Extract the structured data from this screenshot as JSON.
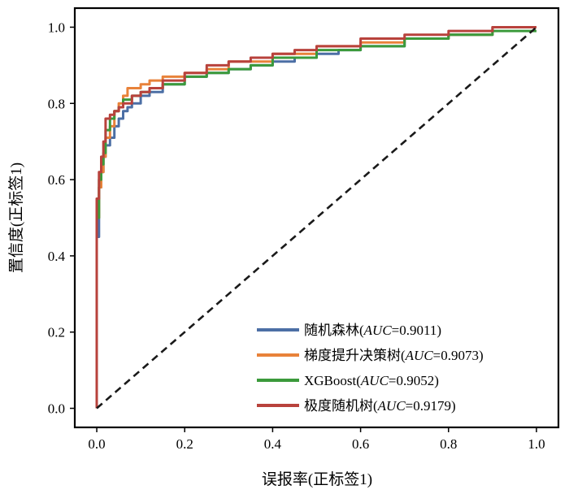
{
  "chart_data": {
    "type": "line",
    "title": "",
    "xlabel": "误报率(正标签1)",
    "ylabel": "置信度(正标签1)",
    "xlim": [
      -0.05,
      1.05
    ],
    "ylim": [
      -0.05,
      1.05
    ],
    "xticks": [
      "0.0",
      "0.2",
      "0.4",
      "0.6",
      "0.8",
      "1.0"
    ],
    "yticks": [
      "0.0",
      "0.2",
      "0.4",
      "0.6",
      "0.8",
      "1.0"
    ],
    "grid": false,
    "legend_position": "lower-right",
    "series": [
      {
        "name": "随机森林",
        "auc_label": "AUC",
        "auc_value": "=0.9011)",
        "color": "#4c6fa5",
        "x": [
          0,
          0.005,
          0.01,
          0.015,
          0.02,
          0.03,
          0.04,
          0.05,
          0.06,
          0.07,
          0.08,
          0.1,
          0.12,
          0.15,
          0.2,
          0.25,
          0.3,
          0.35,
          0.4,
          0.45,
          0.5,
          0.55,
          0.6,
          0.7,
          0.8,
          0.9,
          1.0
        ],
        "y": [
          0,
          0.45,
          0.58,
          0.62,
          0.66,
          0.69,
          0.71,
          0.74,
          0.76,
          0.78,
          0.79,
          0.8,
          0.82,
          0.83,
          0.85,
          0.87,
          0.88,
          0.89,
          0.9,
          0.91,
          0.92,
          0.93,
          0.94,
          0.95,
          0.97,
          0.98,
          1.0
        ]
      },
      {
        "name": "梯度提升决策树",
        "auc_label": "AUC",
        "auc_value": "=0.9073)",
        "color": "#e8823a",
        "x": [
          0,
          0.005,
          0.01,
          0.015,
          0.02,
          0.03,
          0.04,
          0.05,
          0.06,
          0.07,
          0.08,
          0.1,
          0.12,
          0.15,
          0.2,
          0.25,
          0.3,
          0.4,
          0.5,
          0.6,
          0.7,
          0.8,
          0.9,
          1.0
        ],
        "y": [
          0,
          0.5,
          0.58,
          0.62,
          0.66,
          0.71,
          0.74,
          0.78,
          0.8,
          0.82,
          0.84,
          0.84,
          0.85,
          0.86,
          0.87,
          0.88,
          0.89,
          0.91,
          0.93,
          0.95,
          0.96,
          0.97,
          0.98,
          1.0
        ]
      },
      {
        "name": "XGBoost",
        "auc_label": "AUC",
        "auc_value": "=0.9052)",
        "color": "#3b9a3b",
        "x": [
          0,
          0.005,
          0.01,
          0.015,
          0.02,
          0.03,
          0.04,
          0.05,
          0.06,
          0.08,
          0.1,
          0.12,
          0.15,
          0.2,
          0.25,
          0.3,
          0.35,
          0.4,
          0.5,
          0.6,
          0.7,
          0.8,
          0.9,
          1.0
        ],
        "y": [
          0,
          0.5,
          0.6,
          0.64,
          0.67,
          0.73,
          0.76,
          0.78,
          0.79,
          0.81,
          0.82,
          0.83,
          0.84,
          0.85,
          0.87,
          0.88,
          0.89,
          0.9,
          0.92,
          0.94,
          0.95,
          0.97,
          0.98,
          0.99
        ]
      },
      {
        "name": "极度随机树",
        "auc_label": "AUC",
        "auc_value": "=0.9179)",
        "color": "#b8423c",
        "x": [
          0,
          0.005,
          0.01,
          0.015,
          0.02,
          0.03,
          0.04,
          0.05,
          0.06,
          0.08,
          0.1,
          0.12,
          0.15,
          0.2,
          0.25,
          0.3,
          0.35,
          0.4,
          0.45,
          0.5,
          0.6,
          0.7,
          0.8,
          0.9,
          1.0
        ],
        "y": [
          0,
          0.55,
          0.62,
          0.66,
          0.7,
          0.76,
          0.77,
          0.78,
          0.79,
          0.8,
          0.82,
          0.83,
          0.84,
          0.86,
          0.88,
          0.9,
          0.91,
          0.92,
          0.93,
          0.94,
          0.95,
          0.97,
          0.98,
          0.99,
          1.0
        ]
      },
      {
        "name": "",
        "style": "dashed",
        "color": "#1a1a1a",
        "x": [
          0,
          1
        ],
        "y": [
          0,
          1
        ]
      }
    ]
  }
}
